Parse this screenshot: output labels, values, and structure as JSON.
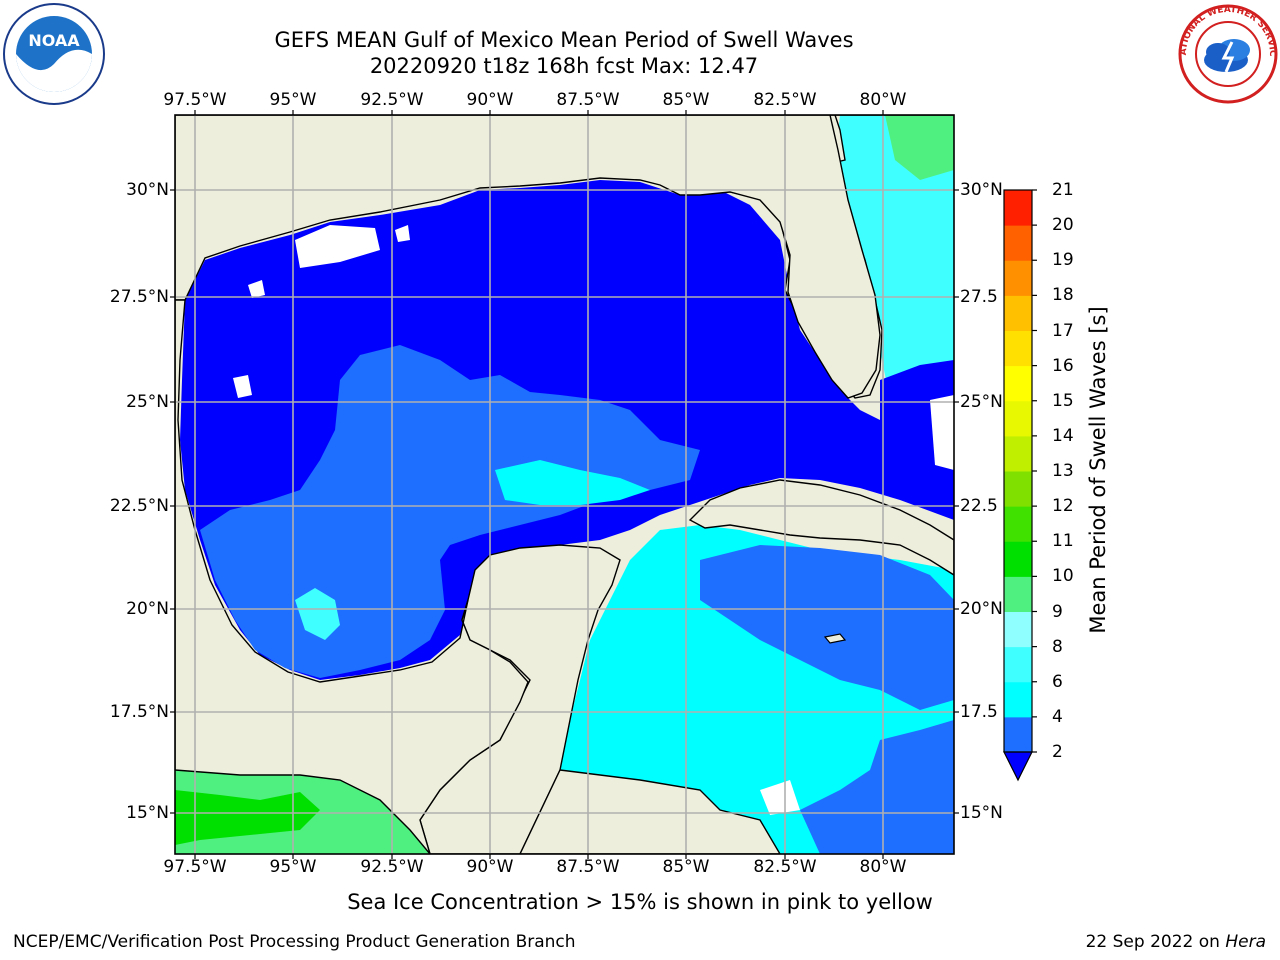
{
  "title": {
    "line1": "GEFS MEAN Gulf of Mexico Mean Period of Swell Waves",
    "line2": "20220920 t18z 168h fcst   Max: 12.47"
  },
  "map": {
    "lon_ticks": [
      "97.5°W",
      "95°W",
      "92.5°W",
      "90°W",
      "87.5°W",
      "85°W",
      "82.5°W",
      "80°W"
    ],
    "lat_ticks": [
      "30°N",
      "27.5°N",
      "25°N",
      "22.5°N",
      "20°N",
      "17.5°N",
      "15°N"
    ],
    "lat_ticks_right": [
      "30°N",
      "27.5",
      "25°N",
      "22.5",
      "20°N",
      "17.5",
      "15°N"
    ],
    "land_color": "#EEEEDD",
    "missing_color": "#FFFFFF",
    "gridlines": true
  },
  "colorbar": {
    "label": "Mean Period of Swell Waves [s]",
    "ticks": [
      "2",
      "4",
      "6",
      "8",
      "9",
      "10",
      "11",
      "12",
      "13",
      "14",
      "15",
      "16",
      "17",
      "18",
      "19",
      "20",
      "21"
    ],
    "colors": [
      "#1E6EFF",
      "#00FFFF",
      "#40FFFF",
      "#90FFFF",
      "#50F080",
      "#00E000",
      "#40E000",
      "#80E000",
      "#C0F000",
      "#E8F800",
      "#FFFF00",
      "#FFE000",
      "#FFC000",
      "#FF9000",
      "#FF6000",
      "#FF2000"
    ],
    "under_color": "#0000FF"
  },
  "footer": {
    "note": "Sea Ice Concentration > 15% is shown in pink to yellow",
    "credit_left": "NCEP/EMC/Verification Post Processing Product Generation Branch",
    "credit_right": "22 Sep 2022 on ",
    "credit_host": "Hera"
  },
  "logos": {
    "left_icon": "noaa-logo",
    "left_text": "NOAA",
    "right_icon": "nws-logo",
    "right_text": "NATIONAL WEATHER SERVICE"
  }
}
